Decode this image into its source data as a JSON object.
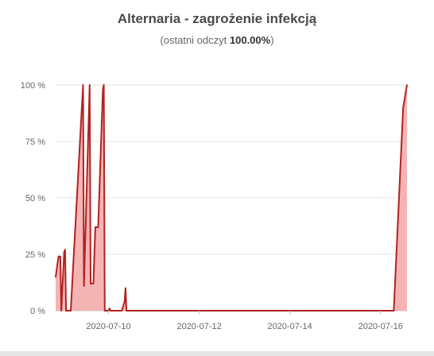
{
  "chart_data": {
    "type": "area",
    "title": "Alternaria - zagrożenie infekcją",
    "subtitle_prefix": "(ostatni odczyt ",
    "subtitle_value": "100.00%",
    "subtitle_suffix": ")",
    "xlabel": "",
    "ylabel": "",
    "y_unit": "%",
    "ylim": [
      0,
      100
    ],
    "y_ticks": [
      0,
      25,
      50,
      75,
      100
    ],
    "y_tick_labels": [
      "0 %",
      "25 %",
      "50 %",
      "75 %",
      "100 %"
    ],
    "x_range": [
      "2020-07-08T20:00",
      "2020-07-16T14:00"
    ],
    "x_ticks": [
      "2020-07-10",
      "2020-07-12",
      "2020-07-14",
      "2020-07-16"
    ],
    "grid": true,
    "colors": {
      "line": "#b22222",
      "fill": "#f2a7a7"
    },
    "series": [
      {
        "points": [
          [
            "2020-07-08T20:00",
            15
          ],
          [
            "2020-07-08T21:30",
            24
          ],
          [
            "2020-07-08T22:30",
            24
          ],
          [
            "2020-07-08T23:00",
            0
          ],
          [
            "2020-07-09T00:30",
            26
          ],
          [
            "2020-07-09T01:00",
            27
          ],
          [
            "2020-07-09T01:30",
            0
          ],
          [
            "2020-07-09T04:00",
            0
          ],
          [
            "2020-07-09T10:30",
            100
          ],
          [
            "2020-07-09T11:00",
            11
          ],
          [
            "2020-07-09T14:00",
            100
          ],
          [
            "2020-07-09T14:30",
            12
          ],
          [
            "2020-07-09T16:00",
            12
          ],
          [
            "2020-07-09T17:00",
            37
          ],
          [
            "2020-07-09T18:30",
            37
          ],
          [
            "2020-07-09T21:00",
            98
          ],
          [
            "2020-07-09T21:30",
            100
          ],
          [
            "2020-07-09T22:00",
            0
          ],
          [
            "2020-07-10T00:00",
            0
          ],
          [
            "2020-07-10T00:30",
            1
          ],
          [
            "2020-07-10T01:00",
            0
          ],
          [
            "2020-07-10T07:00",
            0
          ],
          [
            "2020-07-10T08:30",
            4
          ],
          [
            "2020-07-10T09:00",
            10
          ],
          [
            "2020-07-10T09:30",
            0
          ],
          [
            "2020-07-16T07:00",
            0
          ],
          [
            "2020-07-16T12:00",
            90
          ],
          [
            "2020-07-16T14:00",
            100
          ]
        ]
      }
    ]
  }
}
